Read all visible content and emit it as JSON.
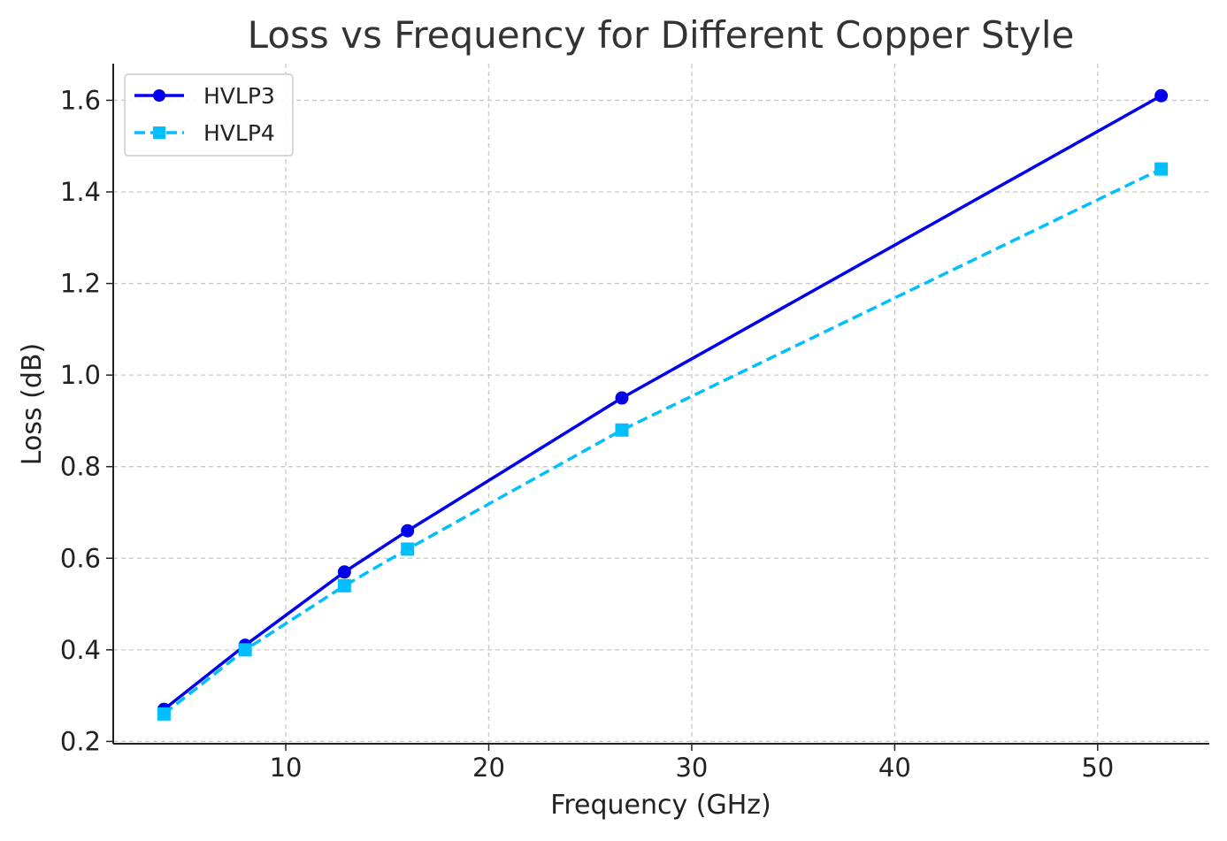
{
  "chart_data": {
    "type": "line",
    "title": "Loss vs Frequency for Different Copper Style",
    "xlabel": "Frequency (GHz)",
    "ylabel": "Loss (dB)",
    "xlim": [
      1.5,
      55.5
    ],
    "ylim": [
      0.195,
      1.68
    ],
    "xticks": [
      10,
      20,
      30,
      40,
      50
    ],
    "yticks": [
      0.2,
      0.4,
      0.6,
      0.8,
      1.0,
      1.2,
      1.4,
      1.6
    ],
    "xtick_labels": [
      "10",
      "20",
      "30",
      "40",
      "50"
    ],
    "ytick_labels": [
      "0.2",
      "0.4",
      "0.6",
      "0.8",
      "1.0",
      "1.2",
      "1.4",
      "1.6"
    ],
    "grid": true,
    "legend_position": "top-left",
    "x": [
      4,
      8,
      12.89,
      16,
      26.56,
      53.13
    ],
    "series": [
      {
        "name": "HVLP3",
        "values": [
          0.27,
          0.41,
          0.57,
          0.66,
          0.95,
          1.61
        ],
        "color": "#0000ee",
        "marker": "circle",
        "line_style": "solid"
      },
      {
        "name": "HVLP4",
        "values": [
          0.26,
          0.4,
          0.54,
          0.62,
          0.88,
          1.45
        ],
        "color": "#00bfff",
        "marker": "square",
        "line_style": "dashed"
      }
    ]
  }
}
